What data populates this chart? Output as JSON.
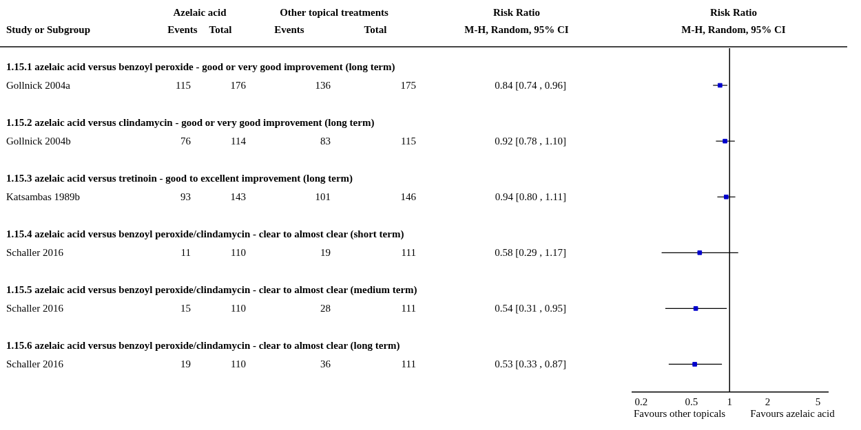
{
  "chart_data": [
    {
      "type": "other",
      "ylabel": "Study or Subgroup",
      "categories": [
        "Events",
        "Total",
        "Events",
        "Total",
        "M-H, Random, 95% CI"
      ],
      "annotations": [
        "Azelaic acid",
        "Other topical treatments",
        "Risk Ratio"
      ],
      "y_categories": [
        "1.15.1 azelaic acid versus benzoyl peroxide - good or very good improvement (long term)",
        "Gollnick 2004a",
        "1.15.2 azelaic acid versus clindamycin - good or very good improvement (long term)",
        "Gollnick 2004b",
        "1.15.3 azelaic acid versus tretinoin - good to excellent improvement (long term)",
        "Katsambas 1989b",
        "1.15.4 azelaic acid versus benzoyl peroxide/clindamycin - clear to almost clear (short term)",
        "Schaller 2016",
        "1.15.5 azelaic acid versus benzoyl peroxide/clindamycin - clear to almost clear (medium term)",
        "Schaller 2016",
        "1.15.6 azelaic acid versus benzoyl peroxide/clindamycin - clear to almost clear (long term)",
        "Schaller 2016"
      ],
      "cell_labels": [
        [
          null,
          null,
          null,
          null,
          null
        ],
        [
          "115",
          "176",
          "136",
          "175",
          "0.84 [0.74 , 0.96]"
        ],
        [
          null,
          null,
          null,
          null,
          null
        ],
        [
          "76",
          "114",
          "83",
          "115",
          "0.92 [0.78 , 1.10]"
        ],
        [
          null,
          null,
          null,
          null,
          null
        ],
        [
          "93",
          "143",
          "101",
          "146",
          "0.94 [0.80 , 1.11]"
        ],
        [
          null,
          null,
          null,
          null,
          null
        ],
        [
          "11",
          "110",
          "19",
          "111",
          "0.58 [0.29 , 1.17]"
        ],
        [
          null,
          null,
          null,
          null,
          null
        ],
        [
          "15",
          "110",
          "28",
          "111",
          "0.54 [0.31 , 0.95]"
        ],
        [
          null,
          null,
          null,
          null,
          null
        ],
        [
          "19",
          "110",
          "36",
          "111",
          "0.53 [0.33 , 0.87]"
        ]
      ]
    },
    {
      "type": "scatter",
      "orientation": "horizontal",
      "title": "Risk Ratio",
      "subtitle": "M-H, Random, 95% CI",
      "categories": [
        null,
        null,
        null,
        null,
        null,
        null,
        null,
        null,
        null,
        null,
        null,
        null,
        null,
        null,
        null,
        null,
        null,
        null
      ],
      "values": [
        null,
        0.84,
        null,
        null,
        0.92,
        null,
        null,
        0.94,
        null,
        null,
        0.58,
        null,
        null,
        0.54,
        null,
        null,
        0.53,
        null
      ],
      "errors": [
        null,
        [
          0.74,
          0.96
        ],
        null,
        null,
        [
          0.78,
          1.1
        ],
        null,
        null,
        [
          0.8,
          1.11
        ],
        null,
        null,
        [
          0.29,
          1.17
        ],
        null,
        null,
        [
          0.31,
          0.95
        ],
        null,
        null,
        [
          0.33,
          0.87
        ],
        null
      ],
      "color": "#0000cc",
      "marker": "square",
      "log": "x",
      "xlim": [
        0.17,
        6
      ],
      "xticks": [
        0.2,
        0.5,
        1,
        2,
        5
      ],
      "ref_lines": [
        {
          "axis": "x",
          "value": 1,
          "color": "#000000"
        }
      ],
      "annotations": [
        "Favours other topicals",
        "Favours azelaic acid"
      ],
      "legend": false
    }
  ]
}
